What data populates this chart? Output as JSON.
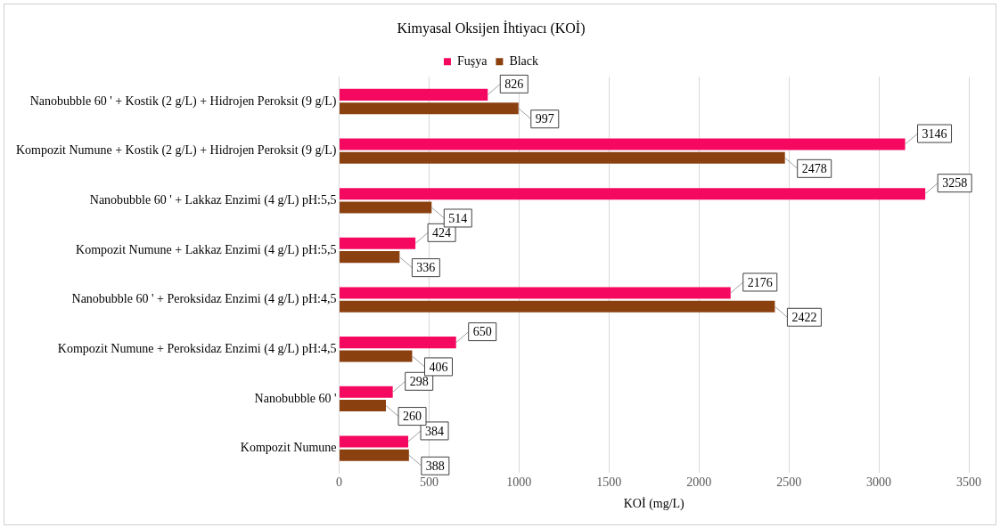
{
  "chart_data": {
    "type": "bar",
    "orientation": "horizontal",
    "title": "Kimyasal Oksijen İhtiyacı (KOİ)",
    "xlabel": "KOİ (mg/L)",
    "categories": [
      "Nanobubble 60 ' + Kostik (2 g/L) + Hidrojen Peroksit (9 g/L)",
      "Kompozit Numune + Kostik (2 g/L) + Hidrojen Peroksit (9 g/L)",
      "Nanobubble 60 ' + Lakkaz Enzimi (4 g/L) pH:5,5",
      "Kompozit Numune + Lakkaz Enzimi (4 g/L) pH:5,5",
      "Nanobubble 60 ' + Peroksidaz Enzimi (4 g/L) pH:4,5",
      "Kompozit Numune + Peroksidaz Enzimi (4 g/L) pH:4,5",
      "Nanobubble 60 '",
      "Kompozit Numune"
    ],
    "series": [
      {
        "name": "Fuşya",
        "color": "#f5085f",
        "values": [
          826,
          3146,
          3258,
          424,
          2176,
          650,
          298,
          384
        ]
      },
      {
        "name": "Black",
        "color": "#8b4010",
        "values": [
          997,
          2478,
          514,
          336,
          2422,
          406,
          260,
          388
        ]
      }
    ],
    "xlim": [
      0,
      3500
    ],
    "xticks": [
      0,
      500,
      1000,
      1500,
      2000,
      2500,
      3000,
      3500
    ],
    "grid": "x",
    "legend": "top",
    "data_labels": true
  }
}
